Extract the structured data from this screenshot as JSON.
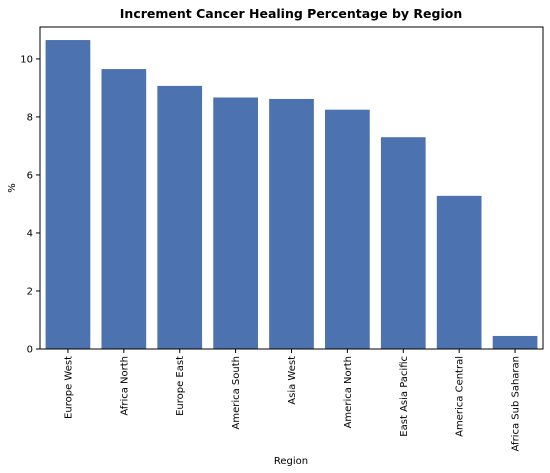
{
  "chart_data": {
    "type": "bar",
    "title": "Increment Cancer Healing Percentage by Region",
    "xlabel": "Region",
    "ylabel": "%",
    "categories": [
      "Europe West",
      "Africa North",
      "Europe East",
      "America South",
      "Asia West",
      "America North",
      "East Asia Pacific",
      "America Central",
      "Africa Sub Saharan"
    ],
    "values": [
      10.65,
      9.65,
      9.07,
      8.67,
      8.62,
      8.25,
      7.3,
      5.28,
      0.45
    ],
    "ylim": [
      0,
      11.1
    ],
    "yticks": [
      "0",
      "2",
      "4",
      "6",
      "8",
      "10"
    ],
    "grid": false,
    "bar_color": "#4c72b0"
  }
}
